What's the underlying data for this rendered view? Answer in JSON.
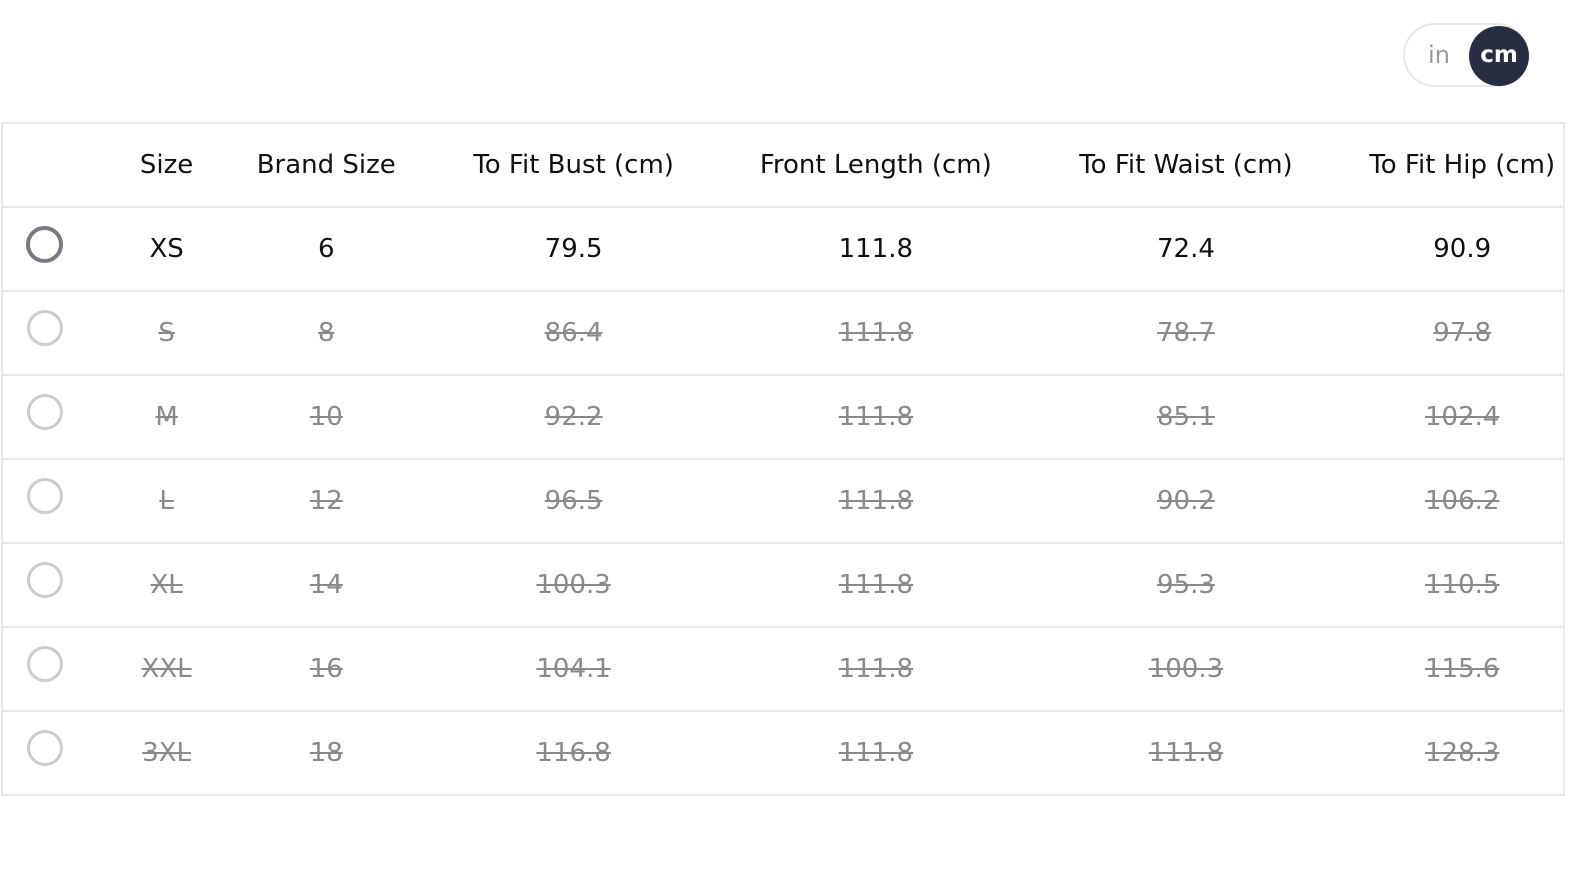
{
  "unit_toggle": {
    "options": [
      "in",
      "cm"
    ],
    "selected": "cm"
  },
  "table": {
    "headers": [
      "",
      "Size",
      "Brand Size",
      "To Fit Bust (cm)",
      "Front Length (cm)",
      "To Fit Waist (cm)",
      "To Fit Hip (cm)"
    ],
    "rows": [
      {
        "available": true,
        "cells": [
          "XS",
          "6",
          "79.5",
          "111.8",
          "72.4",
          "90.9"
        ]
      },
      {
        "available": false,
        "cells": [
          "S",
          "8",
          "86.4",
          "111.8",
          "78.7",
          "97.8"
        ]
      },
      {
        "available": false,
        "cells": [
          "M",
          "10",
          "92.2",
          "111.8",
          "85.1",
          "102.4"
        ]
      },
      {
        "available": false,
        "cells": [
          "L",
          "12",
          "96.5",
          "111.8",
          "90.2",
          "106.2"
        ]
      },
      {
        "available": false,
        "cells": [
          "XL",
          "14",
          "100.3",
          "111.8",
          "95.3",
          "110.5"
        ]
      },
      {
        "available": false,
        "cells": [
          "XXL",
          "16",
          "104.1",
          "111.8",
          "100.3",
          "115.6"
        ]
      },
      {
        "available": false,
        "cells": [
          "3XL",
          "18",
          "116.8",
          "111.8",
          "111.8",
          "128.3"
        ]
      }
    ]
  }
}
